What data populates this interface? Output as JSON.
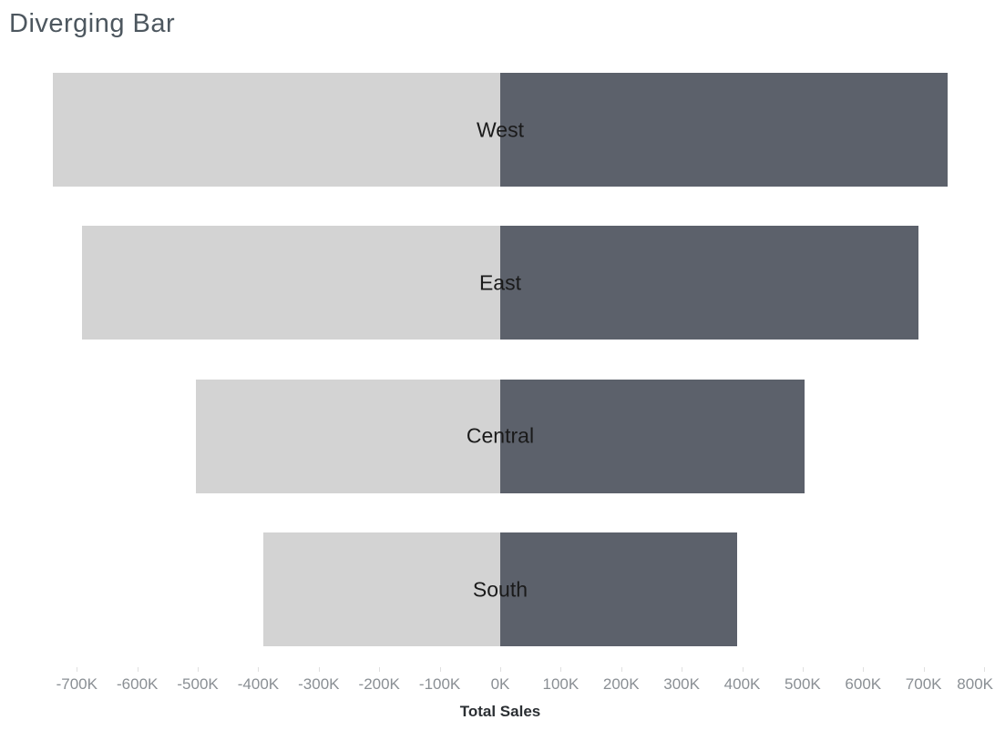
{
  "title": "Diverging Bar",
  "colors": {
    "background": "#ffffff",
    "bar_negative": "#d3d3d3",
    "bar_positive": "#5c616b",
    "bar_label_text": "#1a1a1a",
    "axis_tick_label": "#8a8f94",
    "axis_tick_mark": "#e0e0e0",
    "axis_title_text": "#2b2f33",
    "chart_title_text": "#4d575f"
  },
  "chart_data": {
    "type": "bar",
    "variant": "diverging-horizontal-mirrored",
    "title": "Diverging Bar",
    "categories": [
      "West",
      "East",
      "Central",
      "South"
    ],
    "series": [
      {
        "name": "negative-mirror",
        "color": "#d3d3d3",
        "values_k": [
          -740,
          -692,
          -503,
          -392
        ]
      },
      {
        "name": "positive",
        "color": "#5c616b",
        "values_k": [
          740,
          692,
          503,
          392
        ]
      }
    ],
    "value_unit": "K (thousands of sales)",
    "xlabel": "Total Sales",
    "xlim_k": [
      -827,
      818
    ],
    "x_ticks": [
      {
        "value_k": -700,
        "label": "-700K"
      },
      {
        "value_k": -600,
        "label": "-600K"
      },
      {
        "value_k": -500,
        "label": "-500K"
      },
      {
        "value_k": -400,
        "label": "-400K"
      },
      {
        "value_k": -300,
        "label": "-300K"
      },
      {
        "value_k": -200,
        "label": "-200K"
      },
      {
        "value_k": -100,
        "label": "-100K"
      },
      {
        "value_k": 0,
        "label": "0K"
      },
      {
        "value_k": 100,
        "label": "100K"
      },
      {
        "value_k": 200,
        "label": "200K"
      },
      {
        "value_k": 300,
        "label": "300K"
      },
      {
        "value_k": 400,
        "label": "400K"
      },
      {
        "value_k": 500,
        "label": "500K"
      },
      {
        "value_k": 600,
        "label": "600K"
      },
      {
        "value_k": 700,
        "label": "700K"
      },
      {
        "value_k": 800,
        "label": "800K"
      }
    ],
    "gridlines": false,
    "legend": "none",
    "bar_labels_position": "centered-at-zero"
  }
}
